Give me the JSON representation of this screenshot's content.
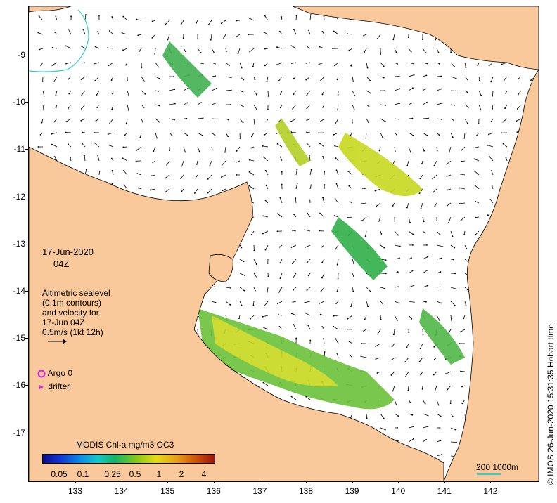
{
  "date_label": "17-Jun-2020",
  "time_label": "04Z",
  "velocity_note": [
    "Altimetric sealevel",
    "(0.1m contours)",
    "and velocity for",
    "17-Jun 04Z",
    "0.5m/s (1kt 12h)"
  ],
  "legend": {
    "argo": "Argo 0",
    "drifter": "drifter",
    "argo_color": "#e020e0",
    "drifter_color": "#e020e0"
  },
  "colorbar": {
    "title": "MODIS Chl-a mg/m3 OC3",
    "ticks": [
      "0.05",
      "0.1",
      "0.25",
      "0.5",
      "1",
      "2",
      "4"
    ]
  },
  "scale_label": "200  1000m",
  "credit": "© IMOS 26-Jun-2020 15:31:35 Hobart time",
  "axes": {
    "lon_ticks": [
      "133",
      "134",
      "135",
      "136",
      "137",
      "138",
      "139",
      "140",
      "141",
      "142"
    ],
    "lat_ticks": [
      "-9",
      "-10",
      "-11",
      "-12",
      "-13",
      "-14",
      "-15",
      "-16",
      "-17"
    ]
  },
  "colors": {
    "land": "#f9c99b",
    "ocean": "#ffffff",
    "coast_line": "#000000",
    "isobath": "#30d0c8"
  }
}
